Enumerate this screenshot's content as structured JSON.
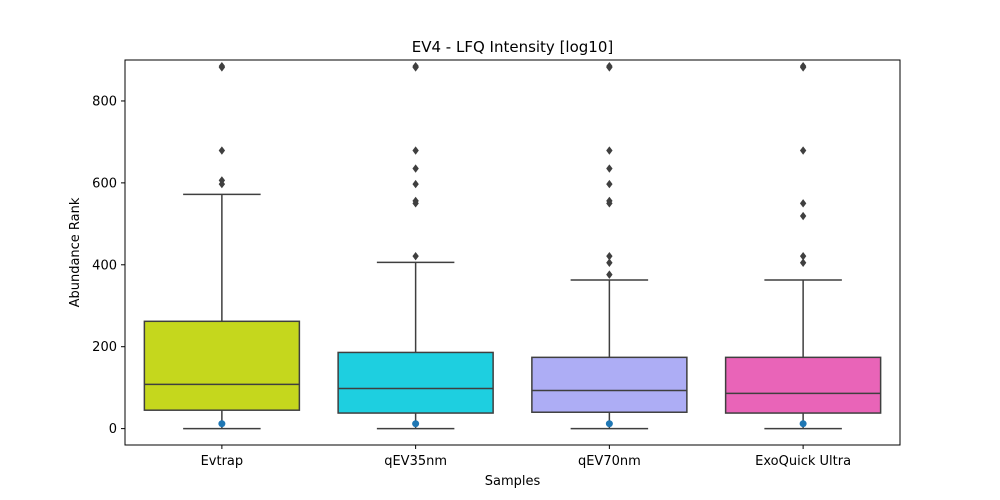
{
  "chart_data": {
    "type": "box",
    "title": "EV4 - LFQ Intensity [log10]",
    "xlabel": "Samples",
    "ylabel": "Abundance Rank",
    "ylim": [
      -40,
      900
    ],
    "yticks": [
      0,
      200,
      400,
      600,
      800
    ],
    "grid": false,
    "categories": [
      "Evtrap",
      "qEV35nm",
      "qEV70nm",
      "ExoQuick Ultra"
    ],
    "colors": [
      "#c5d71d",
      "#1ecfe0",
      "#adadf5",
      "#e964b8"
    ],
    "boxes": [
      {
        "whisker_low": 0,
        "q1": 45,
        "median": 108,
        "q3": 262,
        "whisker_high": 572,
        "outliers": [
          597,
          606,
          679,
          885,
          882
        ],
        "point": 12
      },
      {
        "whisker_low": 0,
        "q1": 38,
        "median": 98,
        "q3": 186,
        "whisker_high": 406,
        "outliers": [
          421,
          550,
          556,
          597,
          635,
          679,
          885,
          882
        ],
        "point": 12
      },
      {
        "whisker_low": 0,
        "q1": 40,
        "median": 93,
        "q3": 174,
        "whisker_high": 363,
        "outliers": [
          376,
          405,
          421,
          550,
          556,
          597,
          635,
          679,
          885,
          882
        ],
        "point": 12
      },
      {
        "whisker_low": 0,
        "q1": 38,
        "median": 86,
        "q3": 174,
        "whisker_high": 363,
        "outliers": [
          405,
          421,
          519,
          550,
          679,
          885,
          882
        ],
        "point": 12
      }
    ],
    "outlier_color": "#3f3f3f",
    "point_color": "#1f77b4",
    "line_color": "#3f3f3f"
  }
}
